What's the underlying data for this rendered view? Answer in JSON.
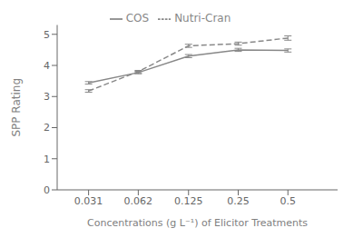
{
  "chart_data": {
    "type": "line",
    "x": [
      0.031,
      0.062,
      0.125,
      0.25,
      0.5
    ],
    "xlabel": "Concentrations (g L⁻¹) of Elicitor Treatments",
    "ylabel": "SPP Rating",
    "xlim": [
      0.02,
      1
    ],
    "xticks": [
      0.031,
      0.062,
      0.125,
      0.25,
      0.5
    ],
    "ylim": [
      0,
      5.3
    ],
    "yticks": [
      0,
      1,
      2,
      3,
      4,
      5
    ],
    "log": "x",
    "legend": "top",
    "series": [
      {
        "name": "COS",
        "color": "#888888",
        "line_style": "solid",
        "values": [
          3.44,
          3.77,
          4.3,
          4.5,
          4.48
        ],
        "errors": [
          0.04,
          0.04,
          0.05,
          0.05,
          0.05
        ]
      },
      {
        "name": "Nutri-Cran",
        "color": "#888888",
        "line_style": "dashed",
        "values": [
          3.18,
          3.8,
          4.63,
          4.7,
          4.88
        ],
        "errors": [
          0.04,
          0.04,
          0.05,
          0.05,
          0.07
        ]
      }
    ]
  }
}
